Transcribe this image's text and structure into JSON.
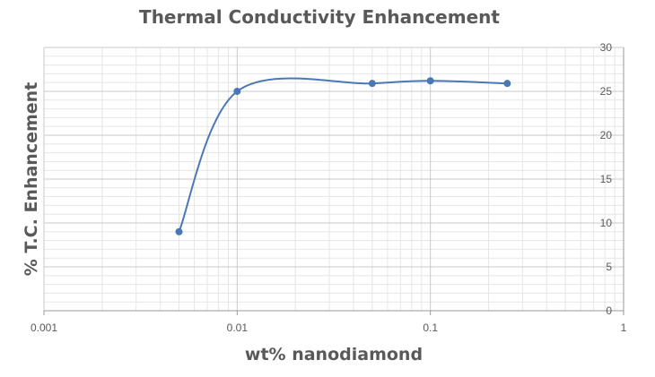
{
  "chart_data": {
    "type": "line",
    "title": "Thermal Conductivity Enhancement",
    "xlabel": "wt% nanodiamond",
    "ylabel": "% T.C. Enhancement",
    "x_scale": "log",
    "xlim": [
      0.001,
      1
    ],
    "ylim": [
      0,
      30
    ],
    "x_ticks": [
      "0.001",
      "0.01",
      "0.1",
      "1"
    ],
    "y_ticks": [
      "0",
      "5",
      "10",
      "15",
      "20",
      "25",
      "30"
    ],
    "y_axis_position": "right",
    "grid": true,
    "smooth": true,
    "series": [
      {
        "x": [
          0.005,
          0.01,
          0.05,
          0.1,
          0.25
        ],
        "y": [
          9,
          25,
          25.9,
          26.2,
          25.9
        ],
        "color": "#4a78b5"
      }
    ]
  }
}
